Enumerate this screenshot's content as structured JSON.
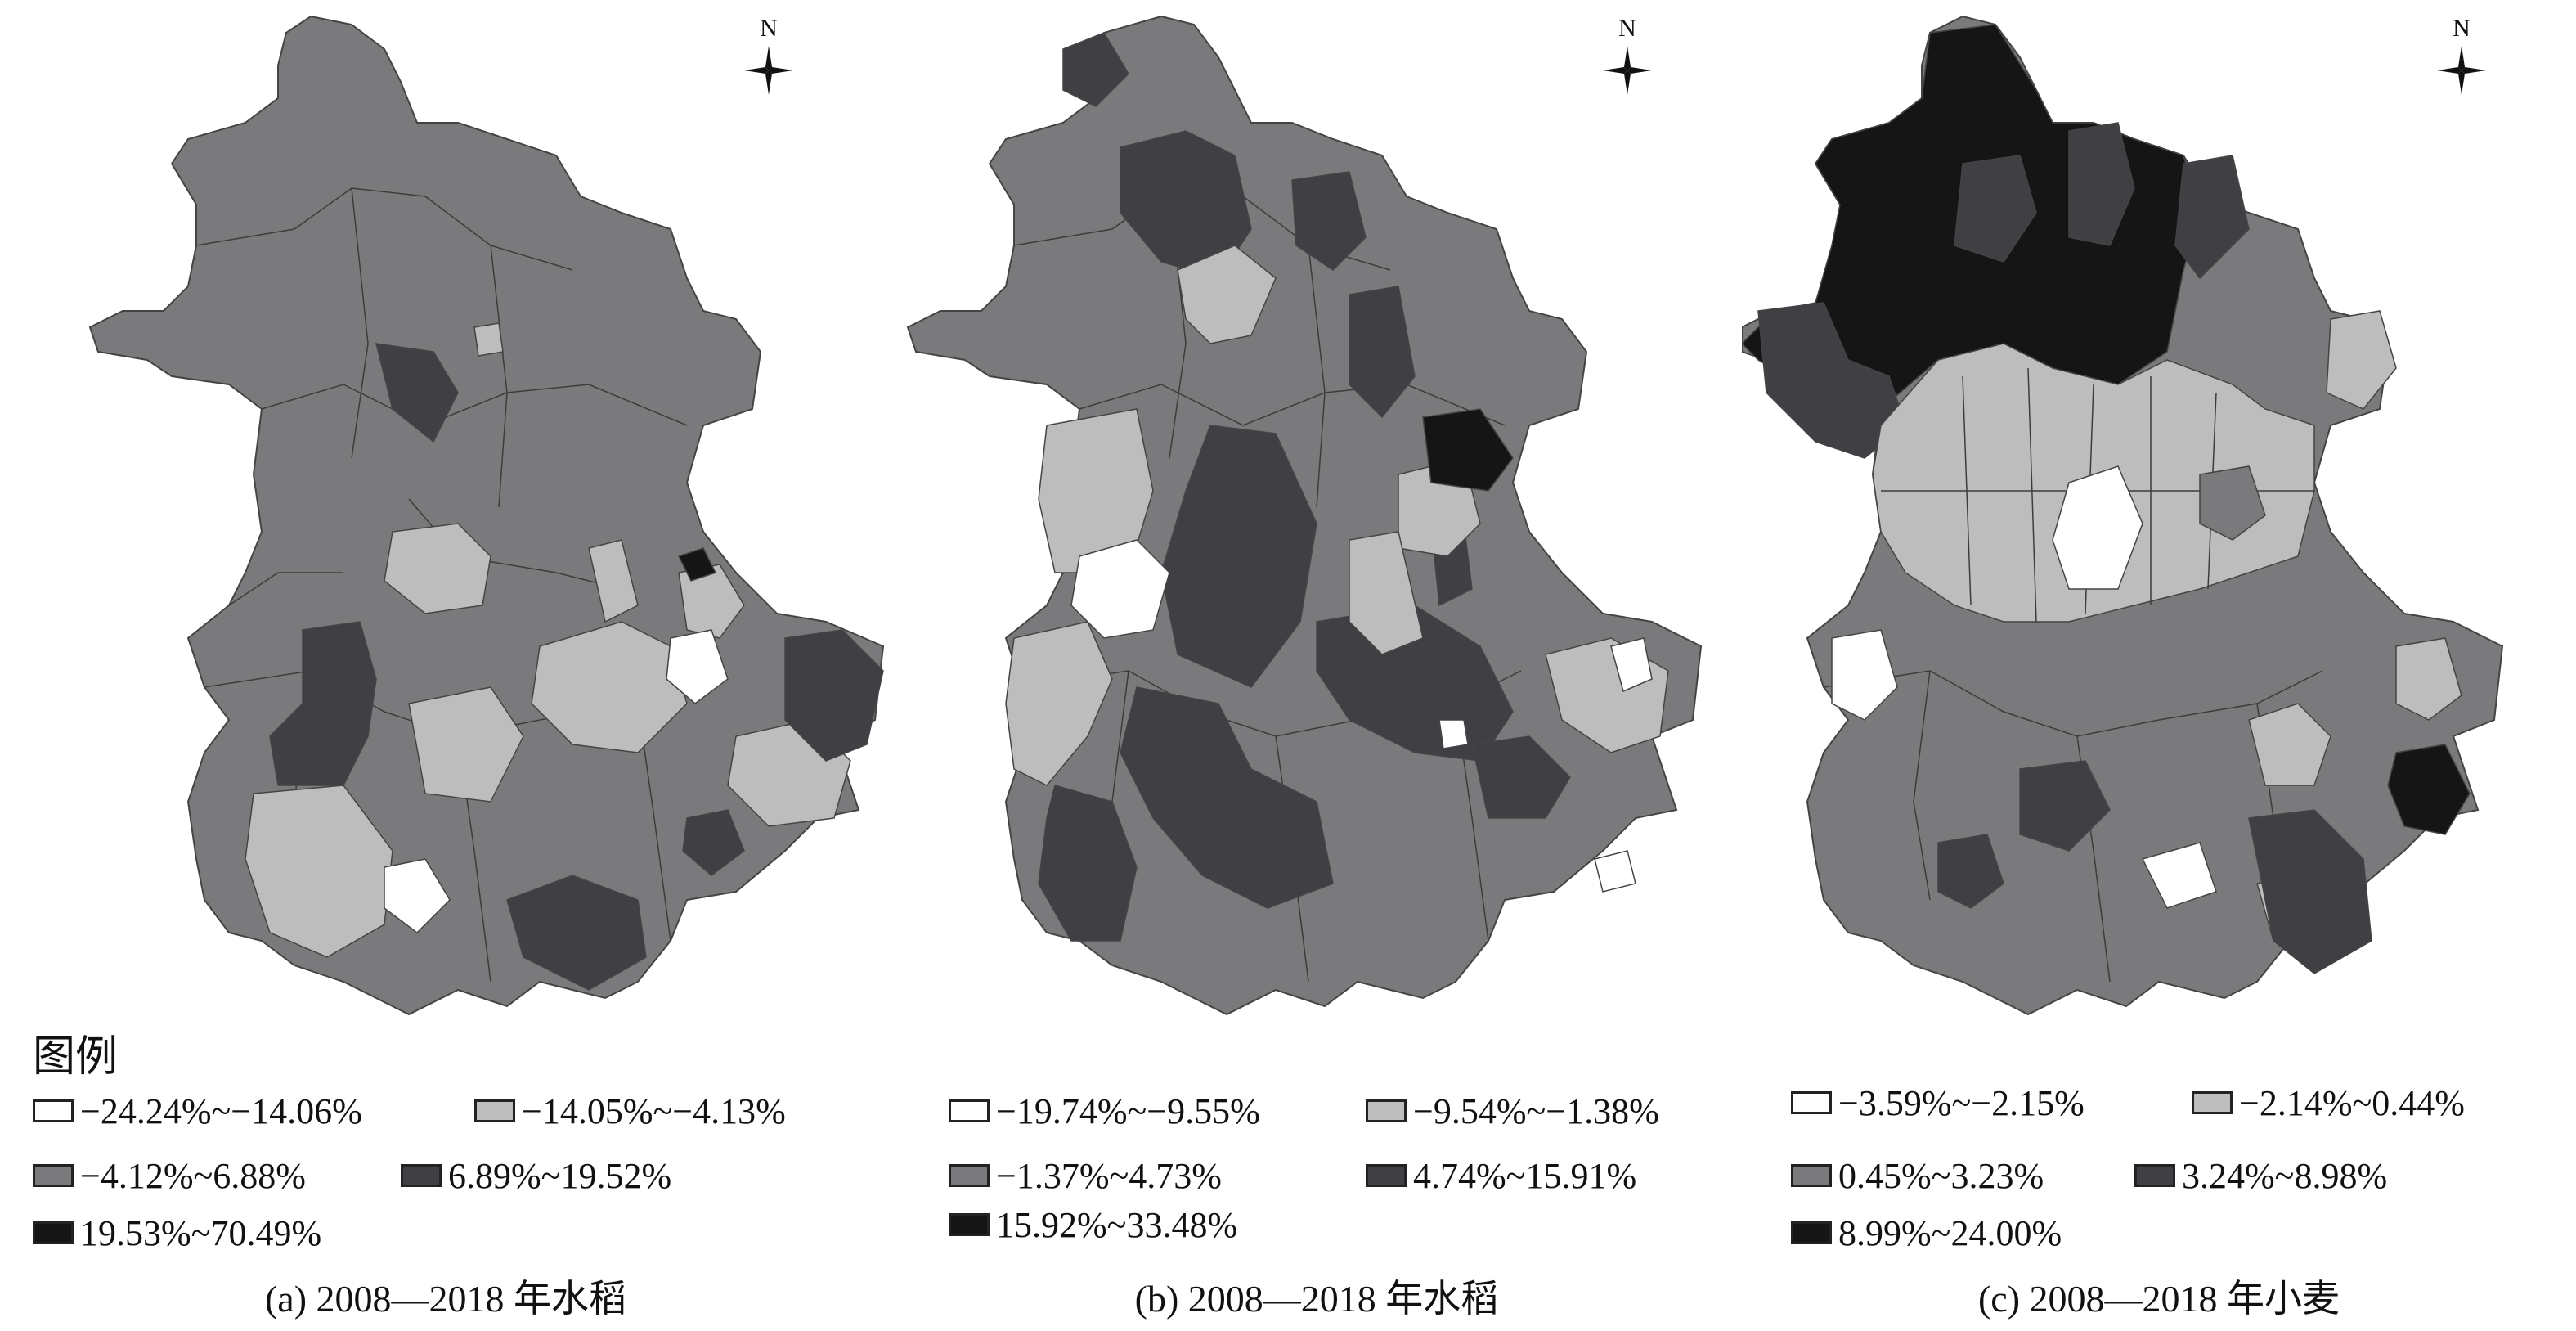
{
  "legend_title": "图例",
  "compass_label": "N",
  "panels": [
    {
      "caption": "(a) 2008—2018 年水稻",
      "legend": [
        {
          "label": "−24.24%~−14.06%",
          "color": "#ffffff"
        },
        {
          "label": "−14.05%~−4.13%",
          "color": "#bdbdbd"
        },
        {
          "label": "−4.12%~6.88%",
          "color": "#7a7a7c"
        },
        {
          "label": "6.89%~19.52%",
          "color": "#404044"
        },
        {
          "label": "19.53%~70.49%",
          "color": "#151515"
        }
      ]
    },
    {
      "caption": "(b) 2008—2018 年水稻",
      "legend": [
        {
          "label": "−19.74%~−9.55%",
          "color": "#ffffff"
        },
        {
          "label": "−9.54%~−1.38%",
          "color": "#bdbdbd"
        },
        {
          "label": "−1.37%~4.73%",
          "color": "#7a7a7c"
        },
        {
          "label": "4.74%~15.91%",
          "color": "#404044"
        },
        {
          "label": "15.92%~33.48%",
          "color": "#151515"
        }
      ]
    },
    {
      "caption": "(c) 2008—2018 年小麦",
      "legend": [
        {
          "label": "−3.59%~−2.15%",
          "color": "#ffffff"
        },
        {
          "label": "−2.14%~0.44%",
          "color": "#bdbdbd"
        },
        {
          "label": "0.45%~3.23%",
          "color": "#7a7a7c"
        },
        {
          "label": "3.24%~8.98%",
          "color": "#404044"
        },
        {
          "label": "8.99%~24.00%",
          "color": "#151515"
        }
      ]
    }
  ]
}
